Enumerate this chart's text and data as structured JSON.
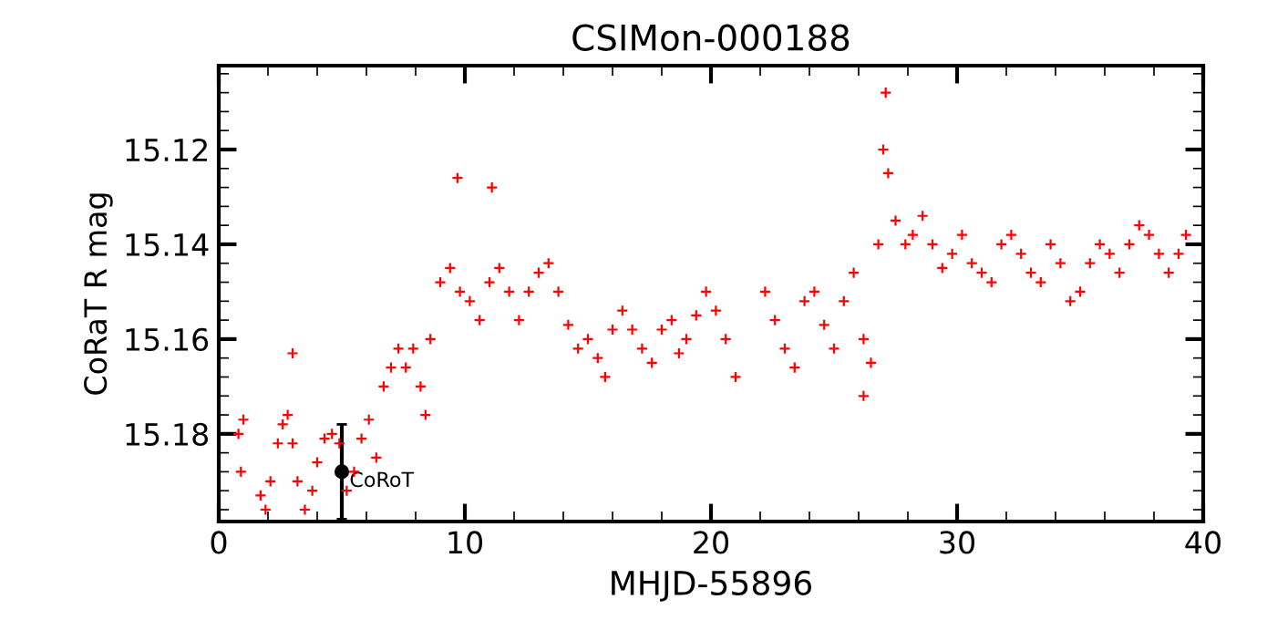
{
  "chart_data": {
    "type": "scatter",
    "title": "CSIMon-000188",
    "xlabel": "MHJD-55896",
    "ylabel": "CoRaT R mag",
    "xlim": [
      0,
      40
    ],
    "xticks": [
      0,
      10,
      20,
      30,
      40
    ],
    "ylim": [
      15.1985,
      15.1023
    ],
    "yticks": [
      15.12,
      15.14,
      15.16,
      15.18
    ],
    "marker": "cross",
    "grid": false,
    "series": [
      {
        "color": "#ff0000",
        "x": [
          0.8,
          0.9,
          1.0,
          1.7,
          1.9,
          2.1,
          2.4,
          2.6,
          2.8,
          3.0,
          3.2,
          3.5,
          3.8,
          4.0,
          4.3,
          4.6,
          4.9,
          5.2,
          5.5,
          5.8,
          6.1,
          6.4,
          6.7,
          7.0,
          7.3,
          7.6,
          7.9,
          8.2,
          8.4,
          8.6,
          9.0,
          9.4,
          9.8,
          10.2,
          10.6,
          11.0,
          11.4,
          11.8,
          12.2,
          12.6,
          13.0,
          13.4,
          13.8,
          14.2,
          14.6,
          15.0,
          15.4,
          15.7,
          16.0,
          16.4,
          16.8,
          17.2,
          17.6,
          18.0,
          18.4,
          18.7,
          19.0,
          19.4,
          19.8,
          20.2,
          20.6,
          21.0,
          22.2,
          22.6,
          23.0,
          23.4,
          23.8,
          24.2,
          24.6,
          25.0,
          25.4,
          25.8,
          26.2,
          26.5,
          26.8,
          27.0,
          27.2,
          27.5,
          27.9,
          28.2,
          28.6,
          29.0,
          29.4,
          29.8,
          30.2,
          30.6,
          31.0,
          31.4,
          31.8,
          32.2,
          32.6,
          33.0,
          33.4,
          33.8,
          34.2,
          34.6,
          35.0,
          35.4,
          35.8,
          36.2,
          36.6,
          37.0,
          37.4,
          37.8,
          38.2,
          38.6,
          39.0,
          39.3,
          27.1,
          9.7,
          26.2,
          3.0,
          11.1
        ],
        "values": [
          15.18,
          15.188,
          15.177,
          15.193,
          15.196,
          15.19,
          15.182,
          15.178,
          15.176,
          15.182,
          15.19,
          15.196,
          15.192,
          15.186,
          15.181,
          15.18,
          15.182,
          15.192,
          15.188,
          15.181,
          15.177,
          15.185,
          15.17,
          15.166,
          15.162,
          15.166,
          15.162,
          15.17,
          15.176,
          15.16,
          15.148,
          15.145,
          15.15,
          15.152,
          15.156,
          15.148,
          15.145,
          15.15,
          15.156,
          15.15,
          15.146,
          15.144,
          15.15,
          15.157,
          15.162,
          15.16,
          15.164,
          15.168,
          15.158,
          15.154,
          15.158,
          15.162,
          15.165,
          15.158,
          15.156,
          15.163,
          15.16,
          15.155,
          15.15,
          15.154,
          15.16,
          15.168,
          15.15,
          15.156,
          15.162,
          15.166,
          15.152,
          15.15,
          15.157,
          15.162,
          15.152,
          15.146,
          15.16,
          15.165,
          15.14,
          15.12,
          15.125,
          15.135,
          15.14,
          15.138,
          15.134,
          15.14,
          15.145,
          15.142,
          15.138,
          15.144,
          15.146,
          15.148,
          15.14,
          15.138,
          15.142,
          15.146,
          15.148,
          15.14,
          15.144,
          15.152,
          15.15,
          15.144,
          15.14,
          15.142,
          15.146,
          15.14,
          15.136,
          15.138,
          15.142,
          15.146,
          15.142,
          15.138,
          15.108,
          15.126,
          15.172,
          15.163,
          15.128
        ]
      },
      {
        "color": "#000000",
        "marker": "circle",
        "x": [
          5
        ],
        "values": [
          15.188
        ],
        "errors": [
          0.01
        ]
      }
    ],
    "annotations": [
      {
        "text": "CoRoT",
        "x": 5,
        "y": 15.19
      }
    ]
  }
}
